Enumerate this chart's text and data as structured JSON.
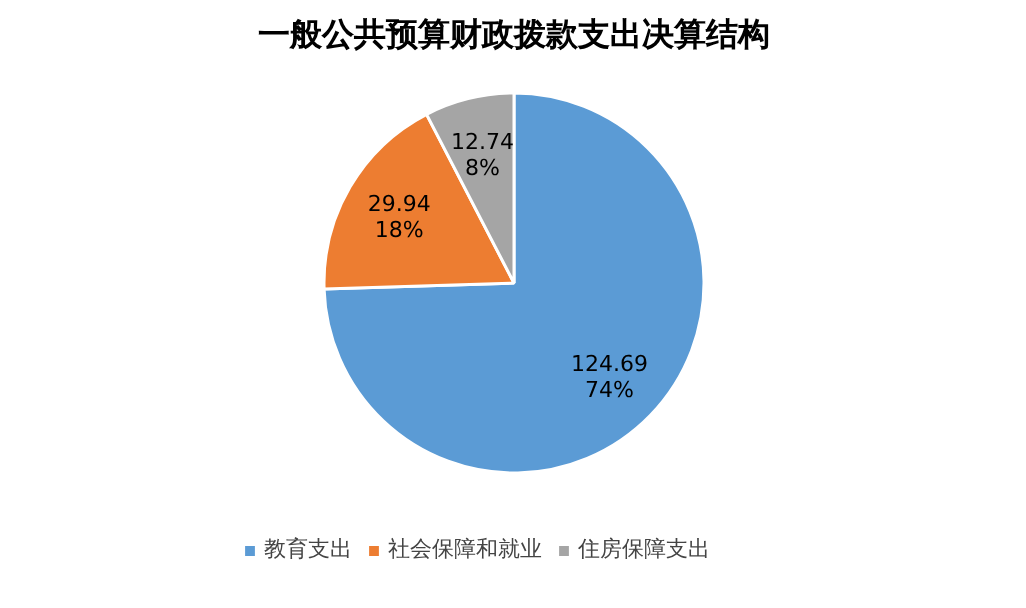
{
  "chart_data": {
    "type": "pie",
    "title": "一般公共预算财政拨款支出决算结构",
    "categories": [
      "教育支出",
      "社会保障和就业",
      "住房保障支出",
      null
    ],
    "values": [
      124.69,
      29.94,
      12.74,
      null
    ],
    "colors": [
      "#5b9bd5",
      "#ed7d31",
      "#a5a5a5",
      "#ffc000"
    ],
    "value_labels": [
      "124.69\n74%",
      "29.94\n18%",
      "12.74\n8%",
      null
    ],
    "legend": "bottom"
  }
}
